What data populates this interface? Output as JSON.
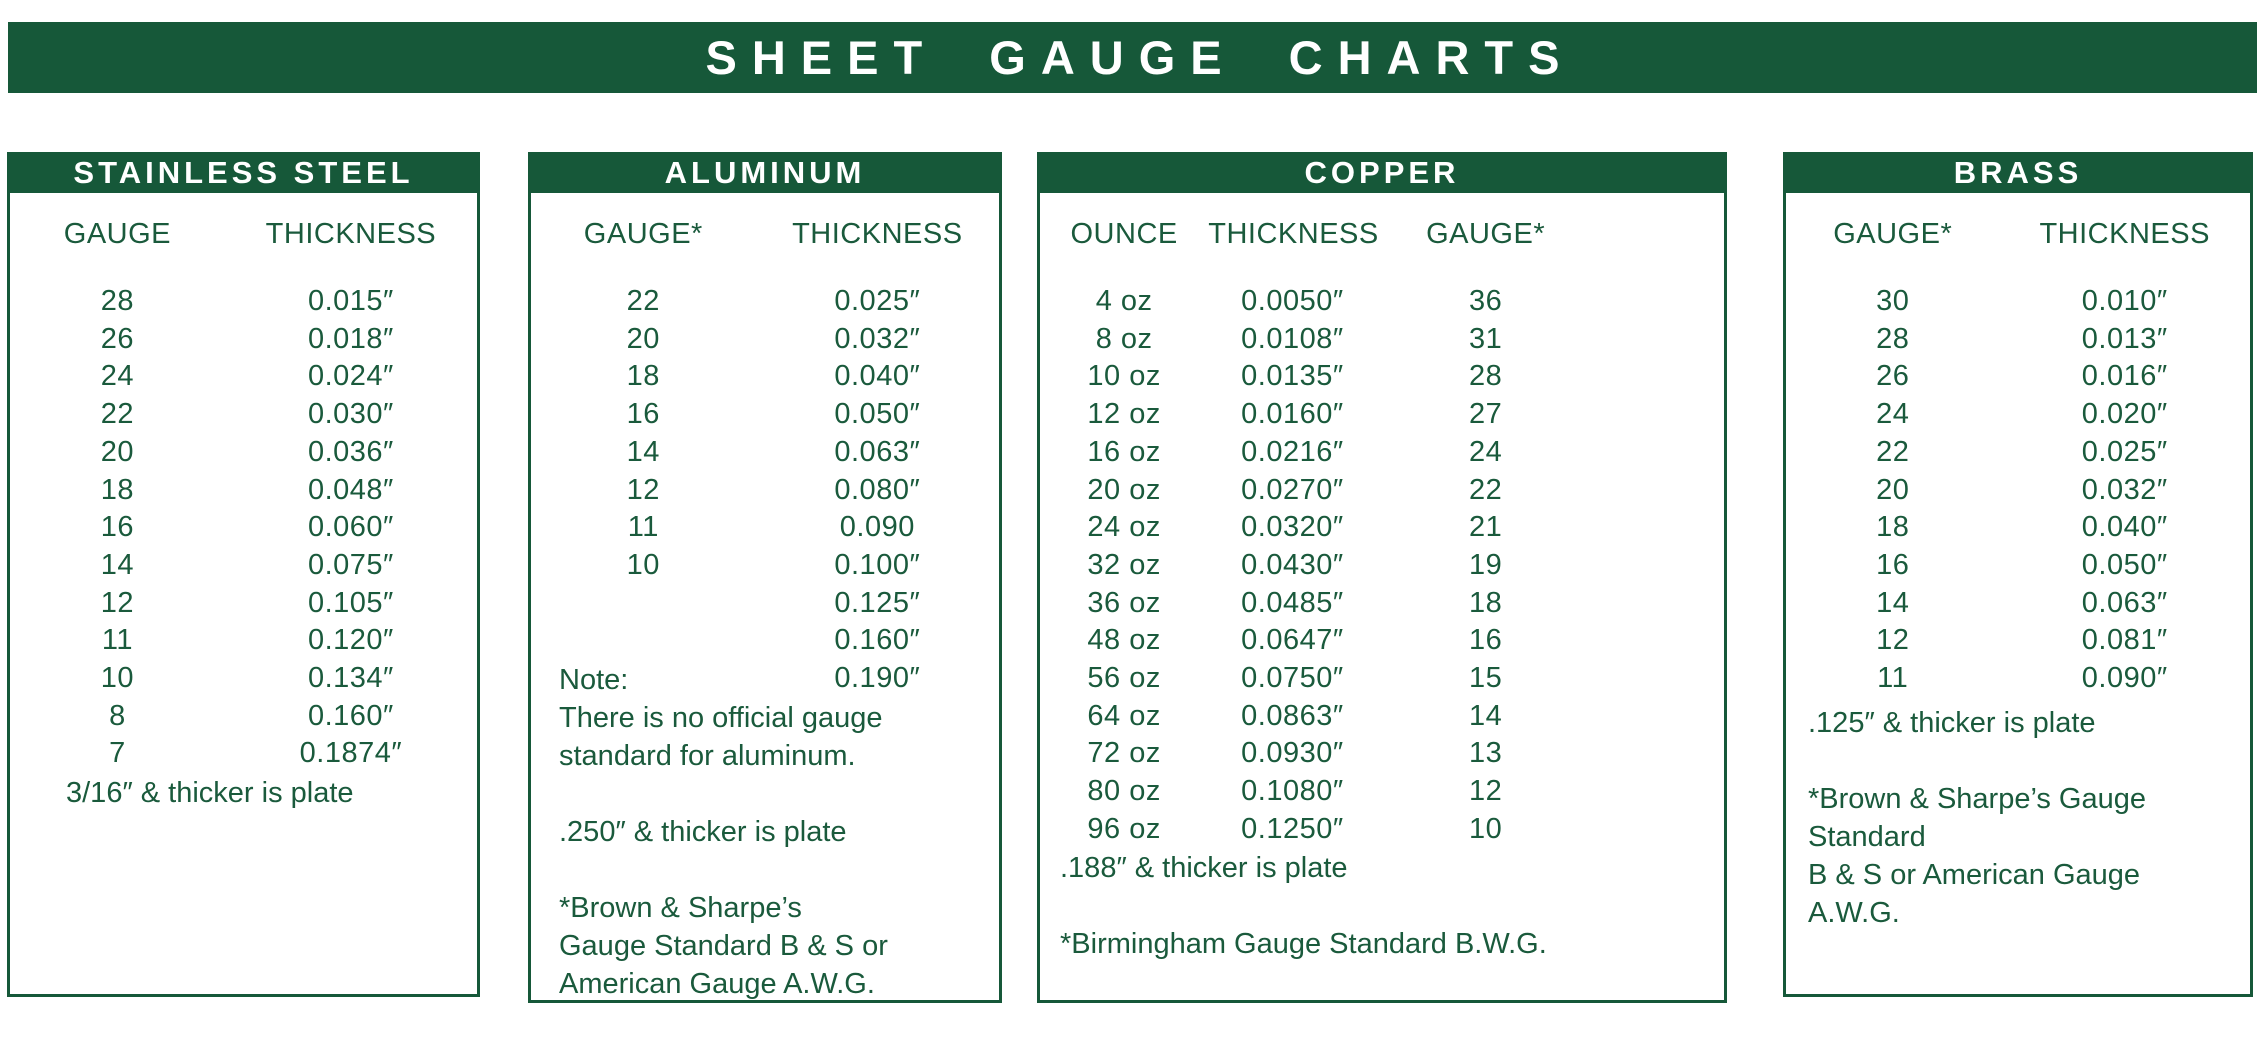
{
  "title": "SHEET GAUGE CHARTS",
  "colors": {
    "accent_green": "#165839",
    "text_green": "#1a5a3c",
    "banner_text": "#ffffff",
    "background": "#ffffff"
  },
  "panels": [
    {
      "id": "stainless-steel",
      "title": "STAINLESS STEEL",
      "columns": [
        "GAUGE",
        "THICKNESS"
      ],
      "rows": [
        [
          "28",
          "0.015″"
        ],
        [
          "26",
          "0.018″"
        ],
        [
          "24",
          "0.024″"
        ],
        [
          "22",
          "0.030″"
        ],
        [
          "20",
          "0.036″"
        ],
        [
          "18",
          "0.048″"
        ],
        [
          "16",
          "0.060″"
        ],
        [
          "14",
          "0.075″"
        ],
        [
          "12",
          "0.105″"
        ],
        [
          "11",
          "0.120″"
        ],
        [
          "10",
          "0.134″"
        ],
        [
          "8",
          "0.160″"
        ],
        [
          "7",
          "0.1874″"
        ]
      ],
      "notes": [
        "3/16″ & thicker is plate"
      ]
    },
    {
      "id": "aluminum",
      "title": "ALUMINUM",
      "columns": [
        "GAUGE*",
        "THICKNESS"
      ],
      "rows": [
        [
          "22",
          "0.025″"
        ],
        [
          "20",
          "0.032″"
        ],
        [
          "18",
          "0.040″"
        ],
        [
          "16",
          "0.050″"
        ],
        [
          "14",
          "0.063″"
        ],
        [
          "12",
          "0.080″"
        ],
        [
          "11",
          "0.090"
        ],
        [
          "10",
          "0.100″"
        ],
        [
          "",
          "0.125″"
        ],
        [
          "",
          "0.160″"
        ],
        [
          "",
          "0.190″"
        ]
      ],
      "notes": [
        "Note:",
        "There is no official gauge",
        "standard for aluminum.",
        "",
        ".250″ & thicker is plate",
        "",
        "*Brown & Sharpe’s",
        "Gauge Standard B & S or",
        "American Gauge A.W.G."
      ]
    },
    {
      "id": "copper",
      "title": "COPPER",
      "columns": [
        "OUNCE",
        "THICKNESS",
        "GAUGE*"
      ],
      "rows": [
        [
          "4 oz",
          "0.0050″",
          "36"
        ],
        [
          "8 oz",
          "0.0108″",
          "31"
        ],
        [
          "10 oz",
          "0.0135″",
          "28"
        ],
        [
          "12 oz",
          "0.0160″",
          "27"
        ],
        [
          "16 oz",
          "0.0216″",
          "24"
        ],
        [
          "20 oz",
          "0.0270″",
          "22"
        ],
        [
          "24 oz",
          "0.0320″",
          "21"
        ],
        [
          "32 oz",
          "0.0430″",
          "19"
        ],
        [
          "36 oz",
          "0.0485″",
          "18"
        ],
        [
          "48 oz",
          "0.0647″",
          "16"
        ],
        [
          "56 oz",
          "0.0750″",
          "15"
        ],
        [
          "64 oz",
          "0.0863″",
          "14"
        ],
        [
          "72 oz",
          "0.0930″",
          "13"
        ],
        [
          "80 oz",
          "0.1080″",
          "12"
        ],
        [
          "96 oz",
          "0.1250″",
          "10"
        ]
      ],
      "notes": [
        ".188″ & thicker is plate",
        "",
        "*Birmingham Gauge Standard B.W.G."
      ]
    },
    {
      "id": "brass",
      "title": "BRASS",
      "columns": [
        "GAUGE*",
        "THICKNESS"
      ],
      "rows": [
        [
          "30",
          "0.010″"
        ],
        [
          "28",
          "0.013″"
        ],
        [
          "26",
          "0.016″"
        ],
        [
          "24",
          "0.020″"
        ],
        [
          "22",
          "0.025″"
        ],
        [
          "20",
          "0.032″"
        ],
        [
          "18",
          "0.040″"
        ],
        [
          "16",
          "0.050″"
        ],
        [
          "14",
          "0.063″"
        ],
        [
          "12",
          "0.081″"
        ],
        [
          "11",
          "0.090″"
        ]
      ],
      "notes": [
        ".125″ & thicker is plate",
        "",
        "*Brown & Sharpe’s Gauge",
        "Standard",
        "B & S or American Gauge",
        "A.W.G."
      ]
    }
  ]
}
